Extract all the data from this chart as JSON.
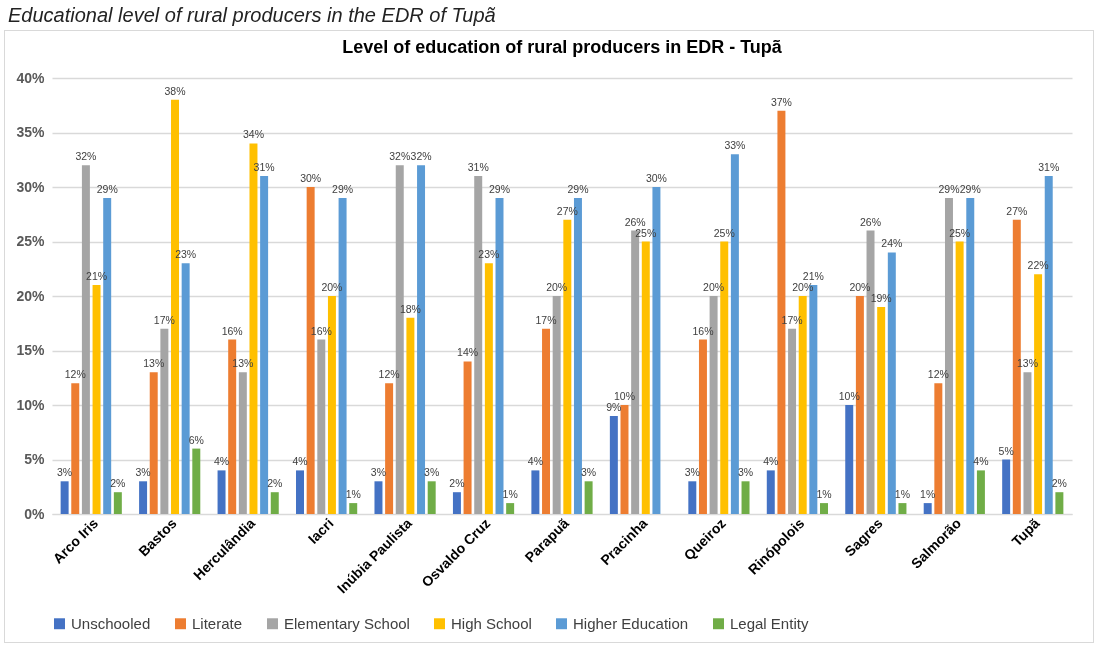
{
  "chart_data": {
    "type": "bar",
    "title": "Level of education of rural producers in EDR - Tupã",
    "annotations": [
      "Educational level of rural producers in the EDR of Tupã"
    ],
    "categories": [
      "Arco Iris",
      "Bastos",
      "Herculândia",
      "Iacri",
      "Inúbia Paulista",
      "Osvaldo Cruz",
      "Parapuã",
      "Pracinha",
      "Queiroz",
      "Rinópolois",
      "Sagres",
      "Salmorão",
      "Tupã"
    ],
    "series": [
      {
        "name": "Unschooled",
        "color": "#4472c4",
        "values": [
          3,
          3,
          4,
          4,
          3,
          2,
          4,
          9,
          3,
          4,
          10,
          1,
          5
        ],
        "value_labels": [
          "3%",
          "3%",
          "4%",
          "4%",
          "3%",
          "2%",
          "4%",
          "9%",
          "3%",
          "4%",
          "10%",
          "1%",
          "5%"
        ]
      },
      {
        "name": "Literate",
        "color": "#ed7d31",
        "values": [
          12,
          13,
          16,
          30,
          12,
          14,
          17,
          10,
          16,
          37,
          20,
          12,
          27
        ],
        "value_labels": [
          "12%",
          "13%",
          "16%",
          "30%",
          "12%",
          "14%",
          "17%",
          "10%",
          "16%",
          "37%",
          "20%",
          "12%",
          "27%"
        ]
      },
      {
        "name": "Elementary School",
        "color": "#a5a5a5",
        "values": [
          32,
          17,
          13,
          16,
          32,
          31,
          20,
          26,
          20,
          17,
          26,
          29,
          13
        ],
        "value_labels": [
          "32%",
          "17%",
          "13%",
          "16%",
          "32%",
          "31%",
          "20%",
          "26%",
          "20%",
          "17%",
          "26%",
          "29%",
          "13%"
        ]
      },
      {
        "name": "High School",
        "color": "#ffc000",
        "values": [
          21,
          38,
          34,
          20,
          18,
          23,
          27,
          25,
          25,
          20,
          19,
          25,
          22
        ],
        "value_labels": [
          "21%",
          "38%",
          "34%",
          "20%",
          "18%",
          "23%",
          "27%",
          "25%",
          "25%",
          "20%",
          "19%",
          "25%",
          "22%"
        ]
      },
      {
        "name": "Higher Education",
        "color": "#5b9bd5",
        "values": [
          29,
          23,
          31,
          29,
          32,
          29,
          29,
          30,
          33,
          21,
          24,
          29,
          31
        ],
        "value_labels": [
          "29%",
          "23%",
          "31%",
          "29%",
          "32%",
          "29%",
          "29%",
          "30%",
          "33%",
          "21%",
          "24%",
          "29%",
          "31%"
        ]
      },
      {
        "name": "Legal Entity",
        "color": "#70ad47",
        "values": [
          2,
          6,
          2,
          1,
          3,
          1,
          3,
          null,
          3,
          1,
          1,
          4,
          2
        ],
        "value_labels": [
          "2%",
          "6%",
          "2%",
          "1%",
          "3%",
          "1%",
          "3%",
          null,
          "3%",
          "1%",
          "1%",
          "4%",
          "2%"
        ]
      }
    ],
    "ylim": [
      0,
      40
    ],
    "yticks": [
      {
        "value": 0,
        "label": "0%"
      },
      {
        "value": 5,
        "label": "5%"
      },
      {
        "value": 10,
        "label": "10%"
      },
      {
        "value": 15,
        "label": "15%"
      },
      {
        "value": 20,
        "label": "20%"
      },
      {
        "value": 25,
        "label": "25%"
      },
      {
        "value": 30,
        "label": "30%"
      },
      {
        "value": 35,
        "label": "35%"
      },
      {
        "value": 40,
        "label": "40%"
      }
    ],
    "grid": "y",
    "legend": "bottom"
  }
}
